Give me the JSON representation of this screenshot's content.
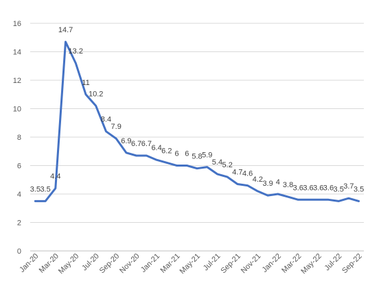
{
  "chart_data": {
    "type": "line",
    "title": "",
    "xlabel": "",
    "ylabel": "",
    "ylim": [
      0,
      16
    ],
    "y_ticks": [
      0,
      2,
      4,
      6,
      8,
      10,
      12,
      14,
      16
    ],
    "grid": "horizontal",
    "legend": "none",
    "line_color": "#4472c4",
    "x_tick_labels": [
      "Jan-20",
      "Mar-20",
      "May-20",
      "Jul-20",
      "Sep-20",
      "Nov-20",
      "Jan-21",
      "Mar-21",
      "May-21",
      "Jul-21",
      "Sep-21",
      "Nov-21",
      "Jan-22",
      "Mar-22",
      "May-22",
      "Jul-22",
      "Sep-22"
    ],
    "categories": [
      "Jan-20",
      "Feb-20",
      "Mar-20",
      "Apr-20",
      "May-20",
      "Jun-20",
      "Jul-20",
      "Aug-20",
      "Sep-20",
      "Oct-20",
      "Nov-20",
      "Dec-20",
      "Jan-21",
      "Feb-21",
      "Mar-21",
      "Apr-21",
      "May-21",
      "Jun-21",
      "Jul-21",
      "Aug-21",
      "Sep-21",
      "Oct-21",
      "Nov-21",
      "Dec-21",
      "Jan-22",
      "Feb-22",
      "Mar-22",
      "Apr-22",
      "May-22",
      "Jun-22",
      "Jul-22",
      "Aug-22",
      "Sep-22"
    ],
    "values": [
      3.5,
      3.5,
      4.4,
      14.7,
      13.2,
      11,
      10.2,
      8.4,
      7.9,
      6.9,
      6.7,
      6.7,
      6.4,
      6.2,
      6,
      6,
      5.8,
      5.9,
      5.4,
      5.2,
      4.7,
      4.6,
      4.2,
      3.9,
      4,
      3.8,
      3.6,
      3.6,
      3.6,
      3.6,
      3.5,
      3.7,
      3.5
    ]
  }
}
